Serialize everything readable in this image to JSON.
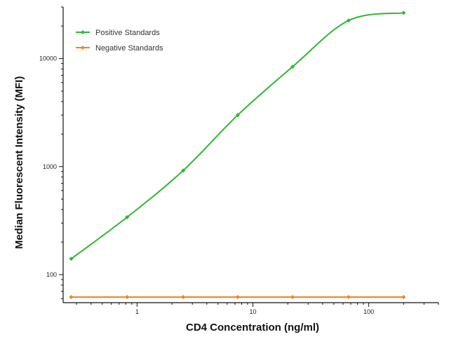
{
  "chart_data": {
    "type": "line",
    "title": "",
    "xlabel": "CD4 Concentration (ng/ml)",
    "ylabel": "Median  Fluorescent Intensity  (MFI)",
    "xscale": "log",
    "yscale": "log",
    "xlim": [
      0.23,
      400
    ],
    "ylim": [
      55,
      30000
    ],
    "x_ticks": [
      1,
      10,
      100
    ],
    "x_tick_labels": [
      "1",
      "10",
      "100"
    ],
    "y_ticks": [
      100,
      1000,
      10000
    ],
    "y_tick_labels": [
      "100",
      "1000",
      "10000"
    ],
    "legend_position": "top-left",
    "grid": false,
    "series": [
      {
        "name": "Positive Standards",
        "color": "#2db82d",
        "marker": "diamond",
        "x": [
          0.27,
          0.82,
          2.5,
          7.4,
          22,
          67,
          200
        ],
        "y": [
          140,
          340,
          920,
          3000,
          8400,
          22500,
          26500
        ]
      },
      {
        "name": "Negative Standards",
        "color": "#f5821f",
        "marker": "diamond",
        "x": [
          0.27,
          0.82,
          2.5,
          7.4,
          22,
          67,
          200
        ],
        "y": [
          62,
          62,
          62,
          62,
          62,
          62,
          62
        ]
      }
    ]
  }
}
